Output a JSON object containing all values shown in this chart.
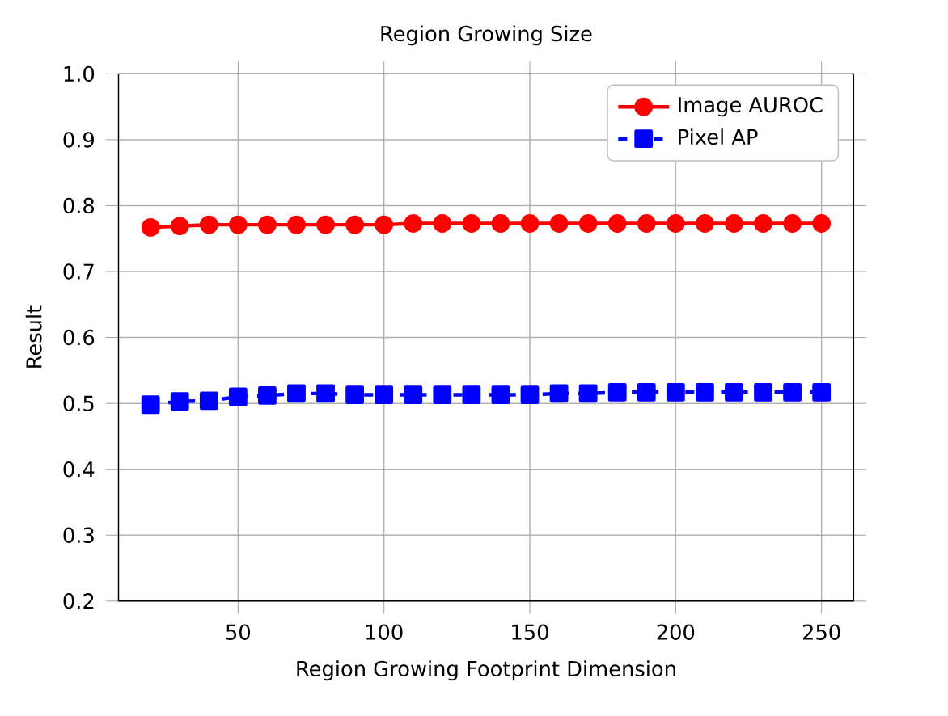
{
  "chart_data": {
    "type": "line",
    "title": "Region Growing Size",
    "xlabel": "Region Growing Footprint Dimension",
    "ylabel": "Result",
    "x": [
      20,
      30,
      40,
      50,
      60,
      70,
      80,
      90,
      100,
      110,
      120,
      130,
      140,
      150,
      160,
      170,
      180,
      190,
      200,
      210,
      220,
      230,
      240,
      250
    ],
    "series": [
      {
        "name": "Image AUROC",
        "color": "#ff0000",
        "marker": "circle",
        "line_style": "solid",
        "values": [
          0.767,
          0.769,
          0.771,
          0.771,
          0.771,
          0.771,
          0.771,
          0.771,
          0.771,
          0.773,
          0.773,
          0.773,
          0.773,
          0.773,
          0.773,
          0.773,
          0.773,
          0.773,
          0.773,
          0.773,
          0.773,
          0.773,
          0.773,
          0.773
        ]
      },
      {
        "name": "Pixel AP",
        "color": "#0000ff",
        "marker": "square",
        "line_style": "dashed",
        "values": [
          0.498,
          0.503,
          0.504,
          0.51,
          0.512,
          0.515,
          0.515,
          0.513,
          0.513,
          0.513,
          0.513,
          0.513,
          0.513,
          0.513,
          0.515,
          0.515,
          0.517,
          0.517,
          0.517,
          0.517,
          0.517,
          0.517,
          0.517,
          0.517
        ]
      }
    ],
    "xlim": [
      9,
      261
    ],
    "ylim": [
      0.2,
      1.0
    ],
    "xticks": [
      50,
      100,
      150,
      200,
      250
    ],
    "yticks": [
      0.2,
      0.3,
      0.4,
      0.5,
      0.6,
      0.7,
      0.8,
      0.9,
      {
        "value": 1.0,
        "label": "1.0"
      }
    ],
    "grid": true,
    "legend": "top right"
  }
}
